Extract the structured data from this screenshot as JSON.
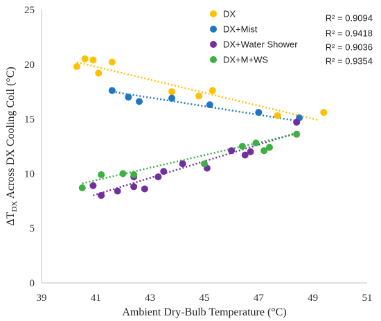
{
  "chart_data": {
    "type": "scatter",
    "xlabel": "Ambient Dry-Bulb Temperature (°C)",
    "ylabel_parts": {
      "pre": "ΔT",
      "sub": "DX",
      "post": " Across DX Cooling Coil (°C)"
    },
    "xlim": [
      39,
      51
    ],
    "ylim": [
      0,
      25
    ],
    "x_ticks": [
      39,
      41,
      43,
      45,
      47,
      49,
      51
    ],
    "y_ticks": [
      0,
      5,
      10,
      15,
      20,
      25
    ],
    "grid": false,
    "legend_position": "top-right",
    "series": [
      {
        "name": "DX",
        "color": "#FFC000",
        "r2": "R² = 0.9094",
        "points": [
          [
            40.3,
            19.8
          ],
          [
            40.6,
            20.5
          ],
          [
            40.9,
            20.4
          ],
          [
            41.1,
            19.2
          ],
          [
            41.6,
            20.2
          ],
          [
            43.8,
            17.5
          ],
          [
            44.8,
            17.1
          ],
          [
            45.3,
            17.6
          ],
          [
            47.7,
            15.3
          ],
          [
            49.4,
            15.6
          ]
        ],
        "trend": [
          [
            40.3,
            20.2
          ],
          [
            49.2,
            14.9
          ]
        ]
      },
      {
        "name": "DX+Mist",
        "color": "#1F77C4",
        "r2": "R² = 0.9418",
        "points": [
          [
            41.6,
            17.6
          ],
          [
            42.2,
            17.0
          ],
          [
            42.6,
            16.6
          ],
          [
            43.8,
            16.9
          ],
          [
            45.2,
            16.3
          ],
          [
            47.0,
            15.6
          ],
          [
            48.5,
            15.1
          ]
        ],
        "trend": [
          [
            41.6,
            17.5
          ],
          [
            48.5,
            14.8
          ]
        ]
      },
      {
        "name": "DX+Water Shower",
        "color": "#7030A0",
        "r2": "R² = 0.9036",
        "points": [
          [
            40.9,
            8.9
          ],
          [
            41.2,
            8.0
          ],
          [
            41.8,
            8.4
          ],
          [
            42.4,
            8.8
          ],
          [
            42.4,
            9.7
          ],
          [
            42.8,
            8.6
          ],
          [
            43.3,
            9.7
          ],
          [
            43.5,
            10.2
          ],
          [
            44.2,
            10.9
          ],
          [
            45.1,
            10.5
          ],
          [
            46.0,
            12.1
          ],
          [
            46.5,
            11.7
          ],
          [
            46.7,
            12.0
          ],
          [
            48.4,
            14.7
          ]
        ],
        "trend": [
          [
            40.9,
            8.0
          ],
          [
            48.5,
            13.8
          ]
        ]
      },
      {
        "name": "DX+M+WS",
        "color": "#3CB043",
        "r2": "R² = 0.9354",
        "points": [
          [
            40.5,
            8.7
          ],
          [
            41.2,
            9.9
          ],
          [
            42.0,
            10.0
          ],
          [
            42.4,
            9.9
          ],
          [
            45.0,
            10.9
          ],
          [
            46.4,
            12.5
          ],
          [
            46.9,
            12.8
          ],
          [
            47.2,
            12.1
          ],
          [
            47.4,
            12.4
          ],
          [
            48.4,
            13.6
          ]
        ],
        "trend": [
          [
            40.5,
            9.1
          ],
          [
            48.5,
            13.7
          ]
        ]
      }
    ]
  }
}
